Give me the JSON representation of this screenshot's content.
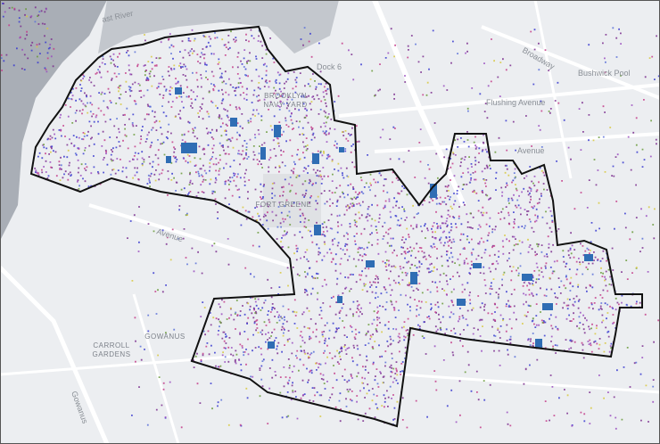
{
  "labels": [
    "ast River",
    "Dock 6",
    "BROOKLYN",
    "NAVY YARD",
    "Broadway",
    "Bushwick Pool",
    "Flushing Avenue",
    "Avenue",
    "FORT GREENE",
    "CARROLL",
    "GARDENS",
    "GOWANUS",
    "Avenue",
    "Gowanus"
  ]
}
